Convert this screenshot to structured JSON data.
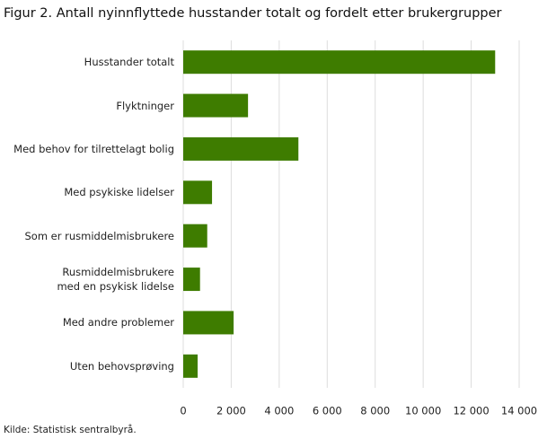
{
  "chart_data": {
    "type": "barh",
    "title": "Figur 2. Antall nyinnflyttede husstander totalt og fordelt etter brukergrupper",
    "categories": [
      "Husstander totalt",
      "Flyktninger",
      "Med behov for tilrettelagt bolig",
      "Med psykiske lidelser",
      "Som er rusmiddelmisbrukere",
      "Rusmiddelmisbrukere\nmed en psykisk lidelse",
      "Med andre problemer",
      "Uten behovsprøving"
    ],
    "values": [
      13000,
      2700,
      4800,
      1200,
      1000,
      700,
      2100,
      600
    ],
    "color": "#3e7c00",
    "xlim": [
      0,
      14000
    ],
    "xticks": [
      0,
      {
        "value": 2000,
        "label": "2 000"
      },
      {
        "value": 4000,
        "label": "4 000"
      },
      {
        "value": 6000,
        "label": "6 000"
      },
      {
        "value": 8000,
        "label": "8 000"
      },
      {
        "value": 10000,
        "label": "10 000"
      },
      {
        "value": 12000,
        "label": "12 000"
      },
      {
        "value": 14000,
        "label": "14 000"
      }
    ],
    "grid": true,
    "source": "Kilde: Statistisk sentralbyrå."
  }
}
